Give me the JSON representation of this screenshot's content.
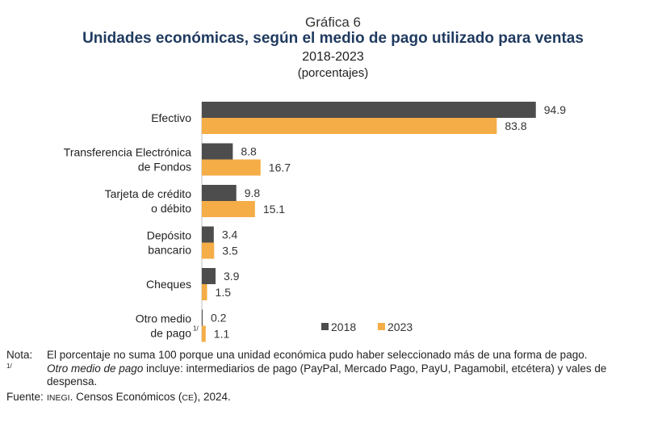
{
  "header": {
    "figure_label": "Gráfica 6",
    "title": "Unidades económicas, según el medio de pago utilizado para ventas",
    "years": "2018-2023",
    "units": "(porcentajes)"
  },
  "chart_data": {
    "type": "bar",
    "orientation": "horizontal",
    "categories": [
      [
        "Efectivo"
      ],
      [
        "Transferencia Electrónica",
        "de Fondos"
      ],
      [
        "Tarjeta de crédito",
        "o débito"
      ],
      [
        "Depósito",
        "bancario"
      ],
      [
        "Cheques"
      ],
      [
        "Otro medio",
        "de pago"
      ]
    ],
    "category_superscripts": [
      "",
      "",
      "",
      "",
      "",
      "1/"
    ],
    "series": [
      {
        "name": "2018",
        "color": "#4d4d4d",
        "values": [
          94.9,
          8.8,
          9.8,
          3.4,
          3.9,
          0.2
        ],
        "labels": [
          "94.9",
          "8.8",
          "9.8",
          "3.4",
          "3.9",
          "0.2"
        ]
      },
      {
        "name": "2023",
        "color": "#f5ad47",
        "values": [
          83.8,
          16.7,
          15.1,
          3.5,
          1.5,
          1.1
        ],
        "labels": [
          "83.8",
          "16.7",
          "15.1",
          "3.5",
          "1.5",
          "1.1"
        ]
      }
    ],
    "xlim": [
      0,
      100
    ],
    "legend": "bottom-right"
  },
  "notes": {
    "nota_label": "Nota:",
    "nota_text": "El porcentaje no suma 100 porque una unidad económica pudo haber seleccionado más de una forma de pago.",
    "footnote_mark": "1/",
    "footnote_italic": "Otro medio de pago",
    "footnote_text": " incluye: intermediarios de pago (PayPal, Mercado Pago, PayU, Pagamobil, etcétera) y vales de despensa.",
    "fuente_label": "Fuente:",
    "fuente_org": "INEGI",
    "fuente_text_1": ". Censos Económicos (",
    "fuente_ce": "CE",
    "fuente_text_2": "), 2024."
  }
}
